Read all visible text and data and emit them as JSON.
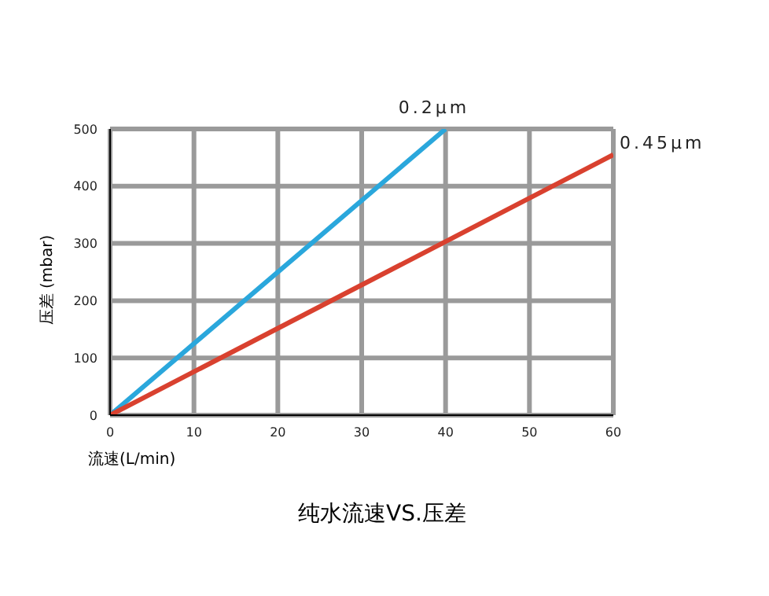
{
  "chart_data": {
    "type": "line",
    "title": "纯水流速VS.压差",
    "xlabel": "流速(L/min)",
    "ylabel": "压差 (mbar)",
    "xlim": [
      0,
      60
    ],
    "xticks": [
      0,
      10,
      20,
      30,
      40,
      50,
      60
    ],
    "ylim": [
      0,
      500
    ],
    "yticks": [
      0,
      100,
      200,
      300,
      400,
      500
    ],
    "grid": true,
    "marker": "none",
    "line_style": "solid",
    "series": [
      {
        "name": "0.2μm",
        "color": "#2aa7dc",
        "x": [
          0,
          40
        ],
        "values": [
          0,
          500
        ]
      },
      {
        "name": "0.45μm",
        "color": "#d9412f",
        "x": [
          0,
          60
        ],
        "values": [
          0,
          455
        ]
      }
    ]
  }
}
